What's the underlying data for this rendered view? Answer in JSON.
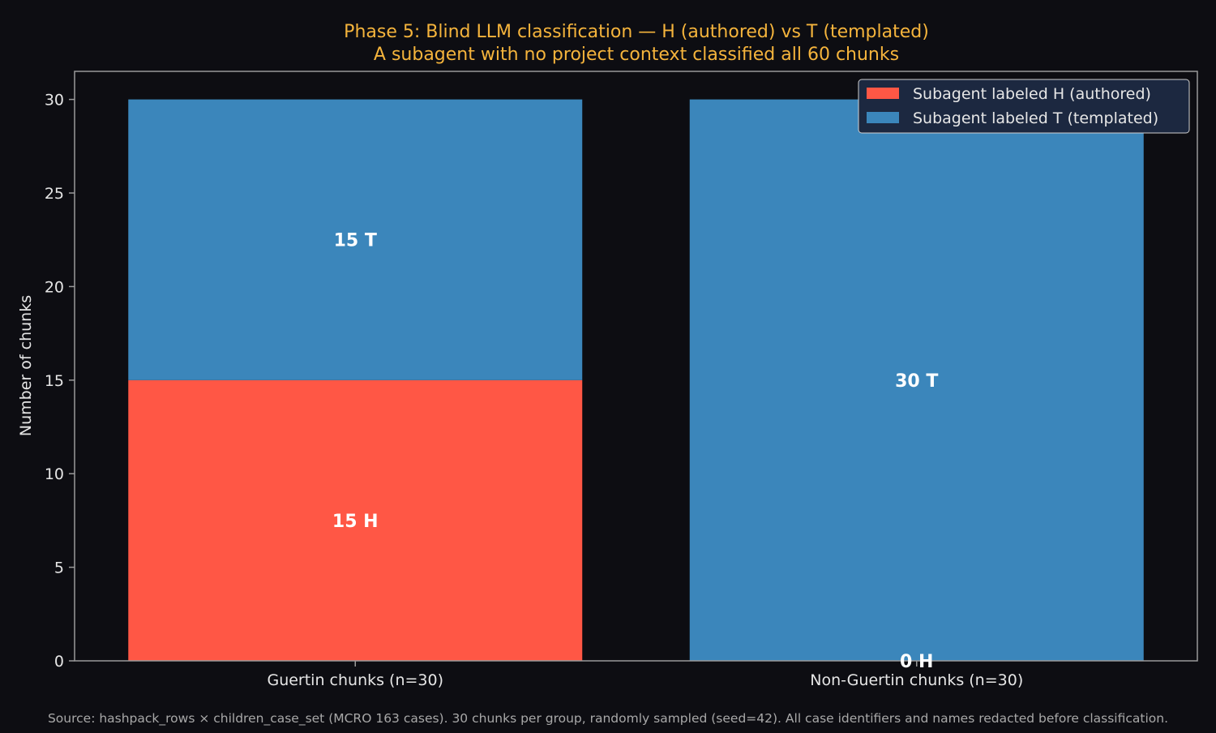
{
  "chart_data": {
    "type": "bar",
    "stacked": true,
    "title": "Phase 5: Blind LLM classification — H (authored) vs T (templated)",
    "subtitle": "A subagent with no project context classified all 60 chunks",
    "xlabel": "",
    "ylabel": "Number of chunks",
    "ylim": [
      0,
      31.5
    ],
    "yticks": [
      0,
      5,
      10,
      15,
      20,
      25,
      30
    ],
    "categories": [
      "Guertin chunks (n=30)",
      "Non-Guertin chunks (n=30)"
    ],
    "series": [
      {
        "name": "Subagent labeled H (authored)",
        "values": [
          15,
          0
        ],
        "labels": [
          "15 H",
          "0 H"
        ],
        "color": "#ff5745"
      },
      {
        "name": "Subagent labeled T (templated)",
        "values": [
          15,
          30
        ],
        "labels": [
          "15 T",
          "30 T"
        ],
        "color": "#3b86bb"
      }
    ],
    "legend_position": "top-right",
    "grid": false
  },
  "footnote": "Source: hashpack_rows × children_case_set (MCRO 163 cases). 30 chunks per group, randomly sampled (seed=42). All case identifiers and names redacted before classification.",
  "colors": {
    "background": "#0d0d12",
    "title": "#f5b43c",
    "text": "#e6e6e6",
    "axis": "#9a9a9a",
    "footnote": "#a8a8a8",
    "legend_bg": "#1c2840"
  }
}
